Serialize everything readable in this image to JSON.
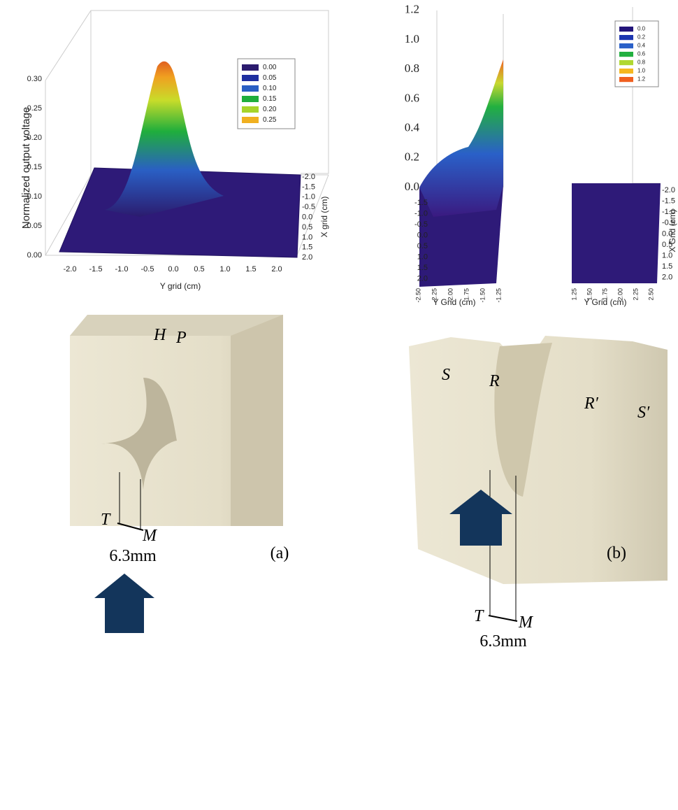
{
  "panel_a": {
    "plot": {
      "z_axis_label": "Normalized output voltage",
      "z_ticks": [
        "0.00",
        "0.05",
        "0.10",
        "0.15",
        "0.20",
        "0.25",
        "0.30"
      ],
      "y_grid_label": "Y grid (cm)",
      "y_grid_ticks": [
        "-2.0",
        "-1.5",
        "-1.0",
        "-0.5",
        "0.0",
        "0.5",
        "1.0",
        "1.5",
        "2.0"
      ],
      "x_grid_label": "X grid (cm)",
      "x_grid_ticks": [
        "-2.0",
        "-1.5",
        "-1.0",
        "-0.5",
        "0.0",
        "0.5",
        "1.0",
        "1.5",
        "2.0"
      ],
      "legend": [
        {
          "label": "0.00",
          "color": "#2b1b6e"
        },
        {
          "label": "0.05",
          "color": "#1f2fa0"
        },
        {
          "label": "0.10",
          "color": "#2a5fc4"
        },
        {
          "label": "0.15",
          "color": "#1fae3c"
        },
        {
          "label": "0.20",
          "color": "#a7d42a"
        },
        {
          "label": "0.25",
          "color": "#f0b020"
        }
      ]
    },
    "photo": {
      "H": "H",
      "P": "P",
      "T": "T",
      "M": "M",
      "dimension": "6.3mm"
    },
    "caption": "(a)"
  },
  "panel_b": {
    "plot": {
      "z_ticks": [
        "0.0",
        "0.2",
        "0.4",
        "0.6",
        "0.8",
        "1.0",
        "1.2"
      ],
      "left_x_grid_ticks": [
        "-1.5",
        "-1.0",
        "-0.5",
        "0.0",
        "0.5",
        "1.0",
        "1.5",
        "2.0"
      ],
      "left_y_grid_ticks": [
        "-2.50",
        "-2.25",
        "-2.00",
        "-1.75",
        "-1.50",
        "-1.25"
      ],
      "left_y_grid_label": "Y Grid (cm)",
      "right_y_grid_ticks": [
        "1.25",
        "1.50",
        "1.75",
        "2.00",
        "2.25",
        "2.50"
      ],
      "right_y_grid_label": "Y Grid (cm)",
      "right_x_grid_ticks": [
        "-2.0",
        "-1.5",
        "-1.0",
        "-0.5",
        "0.0",
        "0.5",
        "1.0",
        "1.5",
        "2.0"
      ],
      "x_grid_label": "X Grid (cm)",
      "legend": [
        {
          "label": "0.0",
          "color": "#23157a"
        },
        {
          "label": "0.2",
          "color": "#1d36b0"
        },
        {
          "label": "0.4",
          "color": "#2a60c8"
        },
        {
          "label": "0.6",
          "color": "#22b040"
        },
        {
          "label": "0.8",
          "color": "#b0d830"
        },
        {
          "label": "1.0",
          "color": "#f5b820"
        },
        {
          "label": "1.2",
          "color": "#f06020"
        }
      ]
    },
    "photo": {
      "S": "S",
      "R": "R",
      "R_prime": "R′",
      "S_prime": "S′",
      "T": "T",
      "M": "M",
      "dimension": "6.3mm"
    },
    "caption": "(b)"
  }
}
